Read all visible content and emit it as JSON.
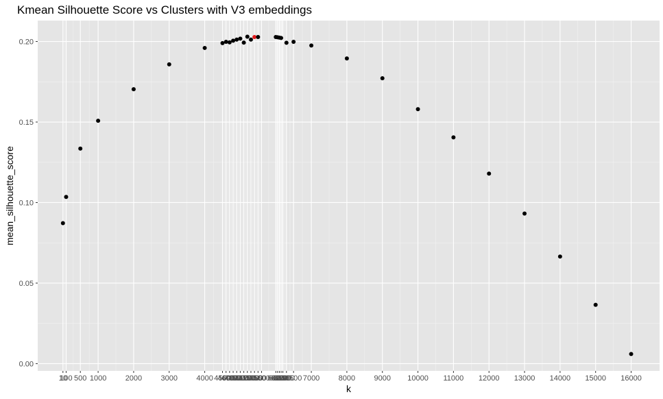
{
  "chart_data": {
    "type": "scatter",
    "title": "Kmean Silhouette Score vs Clusters with V3 embeddings",
    "xlabel": "k",
    "ylabel": "mean_silhouette_score",
    "xlim": [
      -700,
      16800
    ],
    "ylim": [
      -0.0045,
      0.213
    ],
    "grid": true,
    "legend": "none",
    "colors": {
      "panel": "#e5e5e5",
      "grid_major": "#ffffff",
      "point": "#000000",
      "highlight": "#e41a1c",
      "tick_text": "#4d4d4d"
    },
    "y_ticks": [
      {
        "value": 0.0,
        "label": "0.00"
      },
      {
        "value": 0.05,
        "label": "0.05"
      },
      {
        "value": 0.1,
        "label": "0.10"
      },
      {
        "value": 0.15,
        "label": "0.15"
      },
      {
        "value": 0.2,
        "label": "0.20"
      }
    ],
    "x_ticks": [
      {
        "value": 10,
        "label": "10"
      },
      {
        "value": 100,
        "label": "100"
      },
      {
        "value": 500,
        "label": "500"
      },
      {
        "value": 1000,
        "label": "1000"
      },
      {
        "value": 2000,
        "label": "2000"
      },
      {
        "value": 3000,
        "label": "3000"
      },
      {
        "value": 4000,
        "label": "4000"
      },
      {
        "value": 4500,
        "label": "4500"
      },
      {
        "value": 4600,
        "label": "4600"
      },
      {
        "value": 4700,
        "label": "4700"
      },
      {
        "value": 4800,
        "label": "4800"
      },
      {
        "value": 4900,
        "label": "4900"
      },
      {
        "value": 5000,
        "label": "5000"
      },
      {
        "value": 5100,
        "label": "5100"
      },
      {
        "value": 5200,
        "label": "5200"
      },
      {
        "value": 5300,
        "label": "5300"
      },
      {
        "value": 5400,
        "label": "5400"
      },
      {
        "value": 5500,
        "label": "5500"
      },
      {
        "value": 5600,
        "label": "5600"
      },
      {
        "value": 6000,
        "label": "6000"
      },
      {
        "value": 6050,
        "label": "6050"
      },
      {
        "value": 6100,
        "label": "6100"
      },
      {
        "value": 6150,
        "label": "6150"
      },
      {
        "value": 6200,
        "label": "6200"
      },
      {
        "value": 6300,
        "label": "6300"
      },
      {
        "value": 6500,
        "label": "6500"
      },
      {
        "value": 7000,
        "label": "7000"
      },
      {
        "value": 8000,
        "label": "8000"
      },
      {
        "value": 9000,
        "label": "9000"
      },
      {
        "value": 10000,
        "label": "10000"
      },
      {
        "value": 11000,
        "label": "11000"
      },
      {
        "value": 12000,
        "label": "12000"
      },
      {
        "value": 13000,
        "label": "13000"
      },
      {
        "value": 14000,
        "label": "14000"
      },
      {
        "value": 15000,
        "label": "15000"
      },
      {
        "value": 16000,
        "label": "16000"
      }
    ],
    "points": [
      {
        "x": 10,
        "y": 0.0872
      },
      {
        "x": 100,
        "y": 0.1035
      },
      {
        "x": 500,
        "y": 0.1335
      },
      {
        "x": 1000,
        "y": 0.1508
      },
      {
        "x": 2000,
        "y": 0.1704
      },
      {
        "x": 3000,
        "y": 0.1858
      },
      {
        "x": 4000,
        "y": 0.196
      },
      {
        "x": 4500,
        "y": 0.199
      },
      {
        "x": 4600,
        "y": 0.1998
      },
      {
        "x": 4700,
        "y": 0.1995
      },
      {
        "x": 4800,
        "y": 0.2005
      },
      {
        "x": 4900,
        "y": 0.2012
      },
      {
        "x": 5000,
        "y": 0.2018
      },
      {
        "x": 5100,
        "y": 0.1993
      },
      {
        "x": 5200,
        "y": 0.203
      },
      {
        "x": 5300,
        "y": 0.2012
      },
      {
        "x": 5400,
        "y": 0.2028,
        "highlight": true
      },
      {
        "x": 5500,
        "y": 0.2028
      },
      {
        "x": 6000,
        "y": 0.2028
      },
      {
        "x": 6050,
        "y": 0.2026
      },
      {
        "x": 6100,
        "y": 0.2024
      },
      {
        "x": 6150,
        "y": 0.2022
      },
      {
        "x": 6300,
        "y": 0.1992
      },
      {
        "x": 6500,
        "y": 0.1998
      },
      {
        "x": 7000,
        "y": 0.1975
      },
      {
        "x": 8000,
        "y": 0.1895
      },
      {
        "x": 9000,
        "y": 0.1772
      },
      {
        "x": 10000,
        "y": 0.158
      },
      {
        "x": 11000,
        "y": 0.1405
      },
      {
        "x": 12000,
        "y": 0.118
      },
      {
        "x": 13000,
        "y": 0.0932
      },
      {
        "x": 14000,
        "y": 0.0665
      },
      {
        "x": 15000,
        "y": 0.0365
      },
      {
        "x": 16000,
        "y": 0.006
      }
    ]
  }
}
